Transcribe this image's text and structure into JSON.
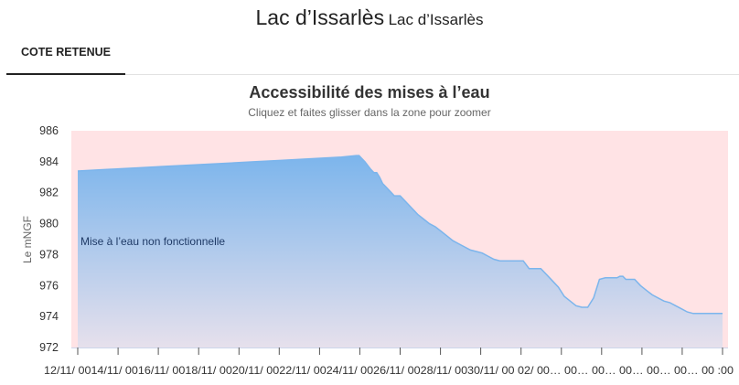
{
  "header": {
    "title": "Lac d’Issarlès",
    "subtitle": "Lac d’Issarlès"
  },
  "tabs": [
    {
      "label": "COTE RETENUE",
      "active": true
    }
  ],
  "chart_data": {
    "type": "area",
    "title": "Accessibilité des mises à l’eau",
    "subtitle": "Cliquez et faites glisser dans la zone pour zoomer",
    "ylabel": "Le mNGF",
    "xlabel": "",
    "ylim": [
      972,
      986
    ],
    "yticks": [
      972,
      974,
      976,
      978,
      980,
      982,
      984,
      986
    ],
    "grid": false,
    "x_tick_labels": [
      "12/11/ 00",
      "14/11/ 00",
      "16/11/ 00",
      "18/11/ 00",
      "20/11/ 00",
      "22/11/ 00",
      "24/11/ 00",
      "26/11/ 00",
      "28/11/ 00",
      "30/11/ 00",
      "02/...",
      "...00",
      "...00",
      "...00",
      "...00",
      "...00",
      "...00",
      "...00"
    ],
    "x_tick_text": "12/11/ 0014/11/ 0016/11/ 0018/11/ 0020/11/ 0022/11/ 0024/11/ 0026/11/ 0028/11/ 0030/11/ 00 02/ 00… 00… 00… 00… 00… 00… 00 :00",
    "band": {
      "from": 972,
      "to": 986,
      "color": "#ffe3e5",
      "label": "Mise à l’eau non fonctionnelle"
    },
    "colors": {
      "line": "#7cb5ec",
      "fill_top": "#7cb5ec",
      "fill_bottom": "#e6e0ec"
    },
    "series": [
      {
        "x": [
          0,
          10,
          20,
          30,
          40,
          50,
          60,
          70,
          80,
          90,
          95,
          96,
          97,
          98,
          100,
          101,
          102,
          103,
          104,
          105,
          106,
          107,
          108,
          110,
          112,
          114,
          116,
          118,
          120,
          122,
          124,
          126,
          128,
          130,
          132,
          134,
          136,
          138,
          140,
          142,
          144,
          146,
          148,
          150,
          152,
          154,
          156,
          158,
          160,
          162,
          164,
          166,
          168,
          170,
          172,
          174,
          176,
          178,
          180,
          182,
          184,
          185,
          186,
          187,
          188,
          190,
          192,
          194,
          196,
          198,
          200,
          202,
          204,
          206,
          208,
          210,
          212,
          214,
          216,
          218,
          220
        ],
        "y": [
          983.4,
          983.5,
          983.6,
          983.7,
          983.8,
          983.9,
          984.0,
          984.1,
          984.2,
          984.3,
          984.4,
          984.4,
          984.2,
          984.0,
          983.5,
          983.3,
          983.3,
          983.0,
          982.6,
          982.4,
          982.2,
          982.0,
          981.8,
          981.8,
          981.4,
          981.0,
          980.6,
          980.3,
          980.0,
          979.8,
          979.5,
          979.2,
          978.9,
          978.7,
          978.5,
          978.3,
          978.2,
          978.1,
          977.9,
          977.7,
          977.6,
          977.6,
          977.6,
          977.6,
          977.6,
          977.1,
          977.1,
          977.1,
          976.7,
          976.3,
          975.9,
          975.3,
          975.0,
          974.7,
          974.6,
          974.6,
          975.2,
          976.4,
          976.5,
          976.5,
          976.5,
          976.6,
          976.6,
          976.4,
          976.4,
          976.4,
          976.0,
          975.7,
          975.4,
          975.2,
          975.0,
          974.9,
          974.7,
          974.5,
          974.3,
          974.2,
          974.2,
          974.2,
          974.2,
          974.2,
          974.2
        ]
      }
    ]
  }
}
